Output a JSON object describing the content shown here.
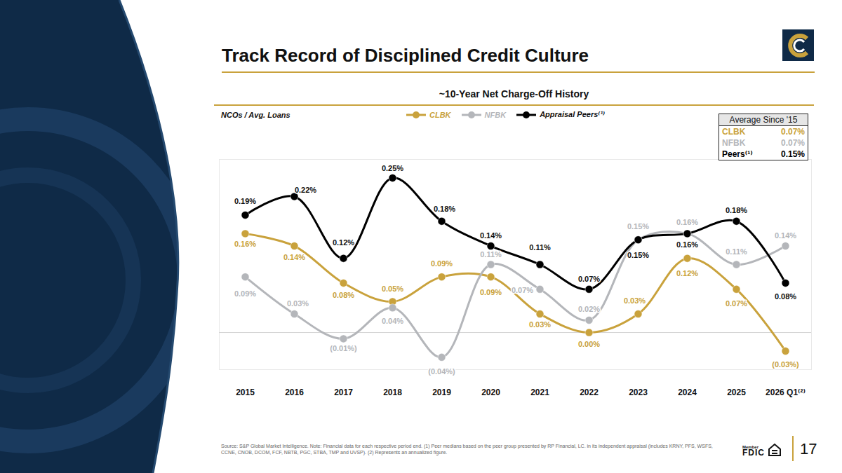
{
  "chart_data": {
    "type": "line",
    "slide_title": "Track Record of Disciplined Credit Culture",
    "title": "~10-Year Net Charge-Off History",
    "y_label": "NCOs / Avg. Loans",
    "categories": [
      "2015",
      "2016",
      "2017",
      "2018",
      "2019",
      "2020",
      "2021",
      "2022",
      "2023",
      "2024",
      "2025",
      "2026 Q1⁽²⁾"
    ],
    "series": [
      {
        "name": "CLBK",
        "color": "#C9A23C",
        "values": [
          0.16,
          0.14,
          0.08,
          0.05,
          0.09,
          0.09,
          0.03,
          0.0,
          0.03,
          0.12,
          0.07,
          -0.03
        ],
        "value_labels": [
          "0.16%",
          "0.14%",
          "0.08%",
          "0.05%",
          "0.09%",
          "0.09%",
          "0.03%",
          "0.00%",
          "0.03%",
          "0.12%",
          "0.07%",
          "(0.03%)"
        ]
      },
      {
        "name": "NFBK",
        "color": "#B4B6BA",
        "values": [
          0.09,
          0.03,
          -0.01,
          0.04,
          -0.04,
          0.11,
          0.07,
          0.02,
          0.15,
          0.16,
          0.11,
          0.14
        ],
        "value_labels": [
          "0.09%",
          "0.03%",
          "(0.01%)",
          "0.04%",
          "(0.04%)",
          "0.11%",
          "0.07%",
          "0.02%",
          "0.15%",
          "0.16%",
          "0.11%",
          "0.14%"
        ]
      },
      {
        "name": "Appraisal Peers⁽¹⁾",
        "color": "#000000",
        "values": [
          0.19,
          0.22,
          0.12,
          0.25,
          0.18,
          0.14,
          0.11,
          0.07,
          0.15,
          0.16,
          0.18,
          0.08
        ],
        "value_labels": [
          "0.19%",
          "0.22%",
          "0.12%",
          "0.25%",
          "0.18%",
          "0.14%",
          "0.11%",
          "0.07%",
          "0.15%",
          "0.16%",
          "0.18%",
          "0.08%"
        ]
      }
    ],
    "ylim": [
      -0.06,
      0.28
    ],
    "yticks": [
      0
    ],
    "grid": true,
    "tick_labels": "x",
    "data_labels": true,
    "legend": "top",
    "marker": "circle",
    "line_style": "solid",
    "average_table": {
      "title": "Average Since '15",
      "rows": [
        [
          "CLBK",
          "0.07%"
        ],
        [
          "NFBK",
          "0.07%"
        ],
        [
          "Peers⁽¹⁾",
          "0.15%"
        ]
      ]
    },
    "source": "Source: S&P Global Market Intelligence. Note: Financial data for each respective period end. (1) Peer medians based on the peer group presented by RP Financial, LC. in its independent appraisal (includes KRNY, PFS, WSFS, CCNE, CNOB, DCOM, FCF, NBTB, PGC, STBA, TMP and UVSP). (2) Represents an annualized figure.",
    "fdic_badge": [
      "Member",
      "FDIC"
    ],
    "page_number": "17"
  }
}
